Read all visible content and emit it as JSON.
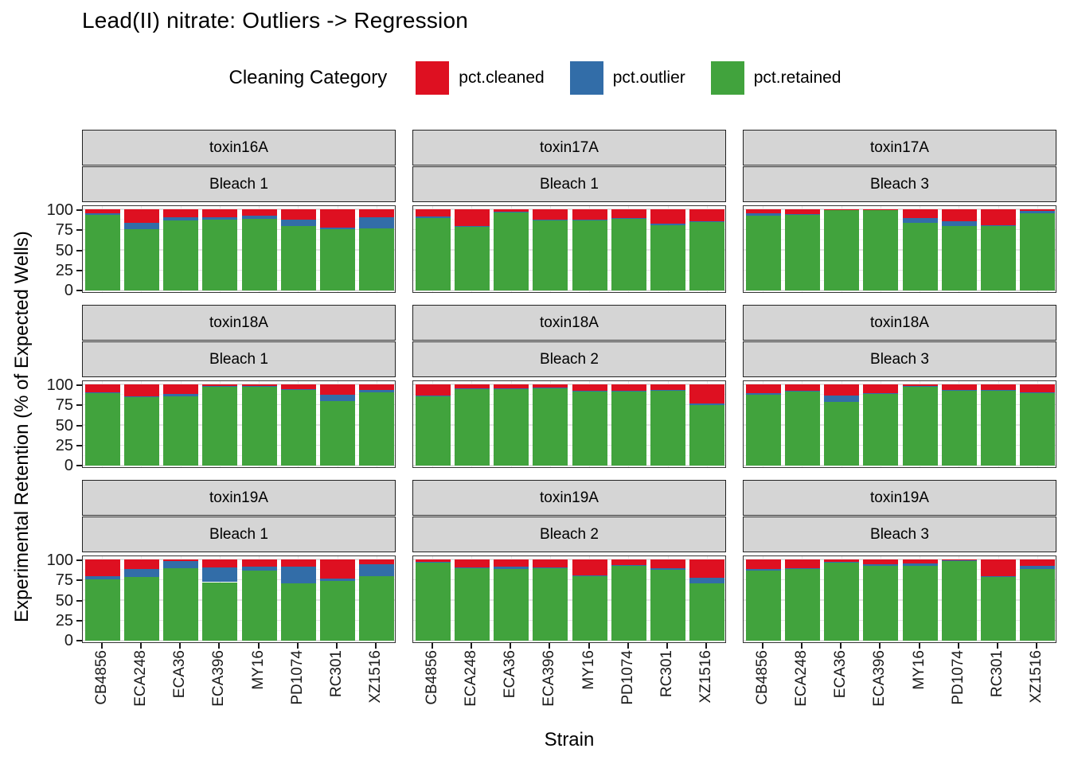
{
  "title": "Lead(II) nitrate: Outliers -> Regression",
  "legend": {
    "title": "Cleaning Category",
    "items": [
      {
        "key": "pct.cleaned",
        "label": "pct.cleaned",
        "color": "#DE1021"
      },
      {
        "key": "pct.outlier",
        "label": "pct.outlier",
        "color": "#326DA8"
      },
      {
        "key": "pct.retained",
        "label": "pct.retained",
        "color": "#41A33D"
      }
    ]
  },
  "chart_data": {
    "type": "bar",
    "stacked": true,
    "title": "Lead(II) nitrate: Outliers -> Regression",
    "xlabel": "Strain",
    "ylabel": "Experimental Retention (% of Expected Wells)",
    "ylim": [
      0,
      100
    ],
    "yticks": [
      0,
      25,
      50,
      75,
      100
    ],
    "grid": true,
    "legend_position": "top",
    "categories": [
      "CB4856",
      "ECA248",
      "ECA36",
      "ECA396",
      "MY16",
      "PD1074",
      "RC301",
      "XZ1516"
    ],
    "series_names": [
      "pct.cleaned",
      "pct.outlier",
      "pct.retained"
    ],
    "colors": {
      "pct.cleaned": "#DE1021",
      "pct.outlier": "#326DA8",
      "pct.retained": "#41A33D"
    },
    "facet_grid": {
      "nrow": 3,
      "ncol": 3
    },
    "facets": [
      {
        "toxin": "toxin16A",
        "bleach": "Bleach 1",
        "cleaned": [
          5,
          17,
          10,
          10,
          8,
          13,
          23,
          10
        ],
        "outlier": [
          2,
          8,
          4,
          3,
          4,
          8,
          2,
          14
        ],
        "retained": [
          93,
          75,
          86,
          87,
          88,
          79,
          75,
          76
        ]
      },
      {
        "toxin": "toxin17A",
        "bleach": "Bleach 1",
        "cleaned": [
          9,
          21,
          3,
          13,
          13,
          11,
          18,
          15
        ],
        "outlier": [
          2,
          1,
          1,
          1,
          1,
          1,
          2,
          1
        ],
        "retained": [
          89,
          78,
          96,
          86,
          86,
          88,
          80,
          84
        ]
      },
      {
        "toxin": "toxin17A",
        "bleach": "Bleach 3",
        "cleaned": [
          5,
          6,
          1,
          1,
          11,
          15,
          20,
          2
        ],
        "outlier": [
          3,
          1,
          0,
          0,
          6,
          6,
          1,
          3
        ],
        "retained": [
          92,
          93,
          99,
          99,
          83,
          79,
          79,
          95
        ]
      },
      {
        "toxin": "toxin18A",
        "bleach": "Bleach 1",
        "cleaned": [
          10,
          15,
          12,
          2,
          2,
          6,
          13,
          7
        ],
        "outlier": [
          1,
          1,
          3,
          1,
          1,
          1,
          8,
          3
        ],
        "retained": [
          89,
          84,
          85,
          97,
          97,
          93,
          79,
          90
        ]
      },
      {
        "toxin": "toxin18A",
        "bleach": "Bleach 2",
        "cleaned": [
          14,
          5,
          5,
          4,
          8,
          8,
          7,
          24
        ],
        "outlier": [
          1,
          1,
          1,
          1,
          1,
          1,
          1,
          2
        ],
        "retained": [
          85,
          94,
          94,
          95,
          91,
          91,
          92,
          74
        ]
      },
      {
        "toxin": "toxin18A",
        "bleach": "Bleach 3",
        "cleaned": [
          11,
          8,
          14,
          11,
          2,
          7,
          7,
          10
        ],
        "outlier": [
          2,
          1,
          8,
          1,
          1,
          1,
          1,
          1
        ],
        "retained": [
          87,
          91,
          78,
          88,
          97,
          92,
          92,
          89
        ]
      },
      {
        "toxin": "toxin19A",
        "bleach": "Bleach 1",
        "cleaned": [
          21,
          12,
          2,
          10,
          9,
          9,
          24,
          6
        ],
        "outlier": [
          4,
          10,
          9,
          18,
          5,
          20,
          3,
          15
        ],
        "retained": [
          75,
          78,
          89,
          72,
          86,
          71,
          73,
          79
        ]
      },
      {
        "toxin": "toxin19A",
        "bleach": "Bleach 2",
        "cleaned": [
          3,
          10,
          9,
          10,
          20,
          7,
          11,
          23
        ],
        "outlier": [
          1,
          1,
          3,
          1,
          1,
          1,
          2,
          6
        ],
        "retained": [
          96,
          89,
          88,
          89,
          79,
          92,
          87,
          71
        ]
      },
      {
        "toxin": "toxin19A",
        "bleach": "Bleach 3",
        "cleaned": [
          12,
          11,
          3,
          6,
          5,
          1,
          21,
          8
        ],
        "outlier": [
          2,
          1,
          1,
          2,
          3,
          1,
          1,
          4
        ],
        "retained": [
          86,
          88,
          96,
          92,
          92,
          98,
          78,
          88
        ]
      }
    ]
  }
}
